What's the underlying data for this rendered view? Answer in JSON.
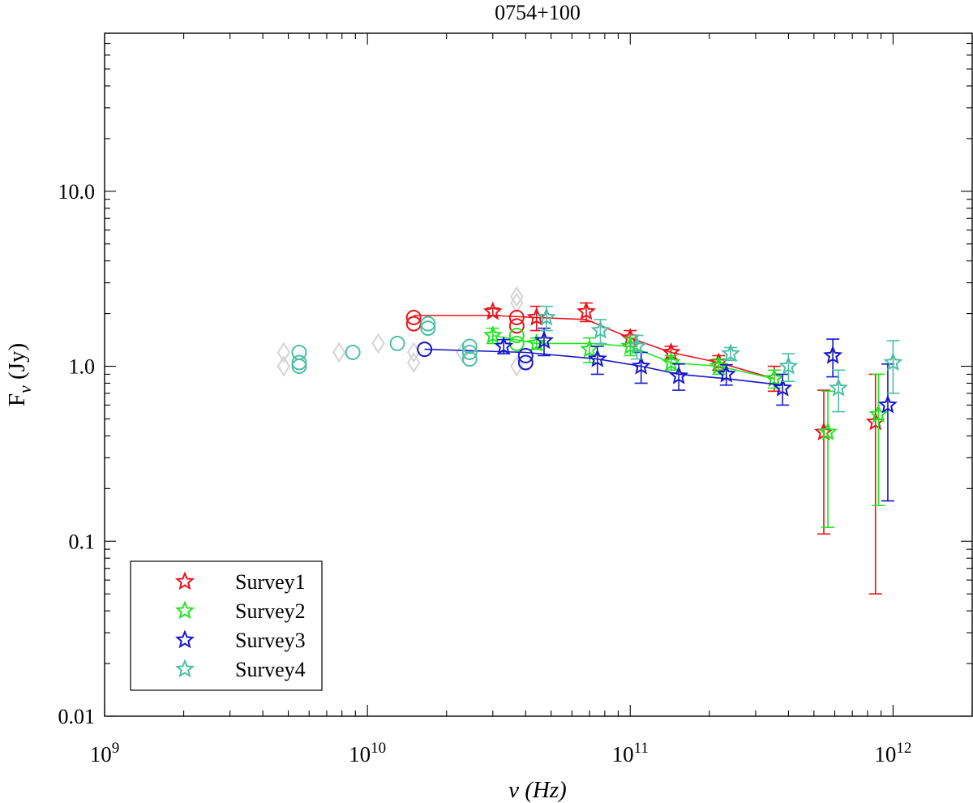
{
  "chart_data": {
    "type": "scatter",
    "title": "0754+100",
    "xlabel": "ν (Hz)",
    "ylabel_main": "F",
    "ylabel_sub": "ν",
    "ylabel_unit": " (Jy)",
    "x_scale": "log",
    "y_scale": "log",
    "xlim": [
      1000000000.0,
      2000000000000.0
    ],
    "ylim": [
      0.01,
      80
    ],
    "x_ticks": [
      {
        "value": 1000000000.0,
        "base": "10",
        "exp": "9"
      },
      {
        "value": 10000000000.0,
        "base": "10",
        "exp": "10"
      },
      {
        "value": 100000000000.0,
        "base": "10",
        "exp": "11"
      },
      {
        "value": 1000000000000.0,
        "base": "10",
        "exp": "12"
      }
    ],
    "y_ticks": [
      {
        "value": 0.01,
        "label": "0.01"
      },
      {
        "value": 0.1,
        "label": "0.1"
      },
      {
        "value": 1,
        "label": "1.0"
      },
      {
        "value": 10,
        "label": "10.0"
      }
    ],
    "legend_position": "bottom-left",
    "grid": false,
    "series": [
      {
        "name": "Survey1",
        "color": "#e8141c",
        "line": [
          [
            15000000000.0,
            1.95
          ],
          [
            30000000000.0,
            1.95
          ],
          [
            44000000000.0,
            1.9
          ],
          [
            68000000000.0,
            1.85
          ],
          [
            100000000000.0,
            1.45
          ],
          [
            143000000000.0,
            1.2
          ],
          [
            217000000000.0,
            1.05
          ],
          [
            353000000000.0,
            0.85
          ]
        ],
        "stars": [
          [
            30000000000.0,
            2.05,
            0.1,
            0.1
          ],
          [
            44000000000.0,
            1.9,
            0.3,
            0.3
          ],
          [
            68000000000.0,
            2.05,
            0.25,
            0.25
          ],
          [
            100000000000.0,
            1.45,
            0.15,
            0.15
          ],
          [
            143000000000.0,
            1.2,
            0.1,
            0.1
          ],
          [
            217000000000.0,
            1.05,
            0.1,
            0.1
          ],
          [
            353000000000.0,
            0.85,
            0.13,
            0.15
          ],
          [
            545000000000.0,
            0.42,
            0.31,
            0.31
          ],
          [
            857000000000.0,
            0.48,
            0.43,
            0.42
          ]
        ],
        "circles": [
          [
            15000000000.0,
            1.9
          ],
          [
            15000000000.0,
            1.75
          ],
          [
            37000000000.0,
            1.9
          ],
          [
            37000000000.0,
            1.7
          ]
        ]
      },
      {
        "name": "Survey2",
        "color": "#22e622",
        "line": [
          [
            30000000000.0,
            1.5
          ],
          [
            44000000000.0,
            1.35
          ],
          [
            70000000000.0,
            1.35
          ],
          [
            100000000000.0,
            1.3
          ],
          [
            143000000000.0,
            1.05
          ],
          [
            217000000000.0,
            1.0
          ],
          [
            353000000000.0,
            0.85
          ]
        ],
        "stars": [
          [
            30000000000.0,
            1.5,
            0.15,
            0.15
          ],
          [
            44000000000.0,
            1.35,
            0.1,
            0.1
          ],
          [
            70000000000.0,
            1.25,
            0.2,
            0.2
          ],
          [
            100000000000.0,
            1.3,
            0.15,
            0.15
          ],
          [
            143000000000.0,
            1.05,
            0.1,
            0.1
          ],
          [
            217000000000.0,
            1.0,
            0.1,
            0.1
          ],
          [
            353000000000.0,
            0.85,
            0.1,
            0.1
          ],
          [
            565000000000.0,
            0.42,
            0.3,
            0.3
          ],
          [
            880000000000.0,
            0.53,
            0.37,
            0.37
          ]
        ],
        "circles": [
          [
            37000000000.0,
            1.5
          ],
          [
            37000000000.0,
            1.35
          ]
        ]
      },
      {
        "name": "Survey3",
        "color": "#1818cc",
        "line": [
          [
            16500000000.0,
            1.25
          ],
          [
            40000000000.0,
            1.2
          ],
          [
            75000000000.0,
            1.1
          ],
          [
            110000000000.0,
            1.0
          ],
          [
            153000000000.0,
            0.9
          ],
          [
            232000000000.0,
            0.85
          ],
          [
            380000000000.0,
            0.78
          ]
        ],
        "stars": [
          [
            33000000000.0,
            1.3,
            0.12,
            0.12
          ],
          [
            47000000000.0,
            1.4,
            0.25,
            0.25
          ],
          [
            75000000000.0,
            1.1,
            0.2,
            0.2
          ],
          [
            110000000000.0,
            1.0,
            0.2,
            0.2
          ],
          [
            153000000000.0,
            0.88,
            0.15,
            0.15
          ],
          [
            232000000000.0,
            0.9,
            0.12,
            0.12
          ],
          [
            380000000000.0,
            0.75,
            0.15,
            0.15
          ],
          [
            590000000000.0,
            1.15,
            0.28,
            0.28
          ],
          [
            955000000000.0,
            0.6,
            0.43,
            0.43
          ]
        ],
        "circles": [
          [
            16500000000.0,
            1.25
          ],
          [
            40000000000.0,
            1.15
          ],
          [
            40000000000.0,
            1.05
          ]
        ]
      },
      {
        "name": "Survey4",
        "color": "#4dbfa6",
        "line": [],
        "stars": [
          [
            48000000000.0,
            1.9,
            0.3,
            0.3
          ],
          [
            77000000000.0,
            1.6,
            0.25,
            0.25
          ],
          [
            106000000000.0,
            1.3,
            0.2,
            0.2
          ],
          [
            241000000000.0,
            1.18,
            0.1,
            0.1
          ],
          [
            400000000000.0,
            1.0,
            0.18,
            0.18
          ],
          [
            620000000000.0,
            0.75,
            0.2,
            0.2
          ],
          [
            1000000000000.0,
            1.05,
            0.35,
            0.35
          ]
        ],
        "circles": [
          [
            5500000000.0,
            1.2
          ],
          [
            5500000000.0,
            1.05
          ],
          [
            5500000000.0,
            1.0
          ],
          [
            8800000000.0,
            1.2
          ],
          [
            13000000000.0,
            1.35
          ],
          [
            17000000000.0,
            1.75
          ],
          [
            17000000000.0,
            1.65
          ],
          [
            24500000000.0,
            1.3
          ],
          [
            24500000000.0,
            1.2
          ],
          [
            24500000000.0,
            1.1
          ]
        ]
      }
    ],
    "archival_grey_points": [
      [
        4800000000.0,
        1.0
      ],
      [
        4800000000.0,
        1.2
      ],
      [
        7800000000.0,
        1.2
      ],
      [
        11000000000.0,
        1.35
      ],
      [
        15000000000.0,
        1.2
      ],
      [
        15000000000.0,
        1.05
      ],
      [
        23000000000.0,
        1.2
      ],
      [
        37000000000.0,
        1.0
      ],
      [
        37000000000.0,
        2.3
      ],
      [
        37000000000.0,
        2.5
      ]
    ]
  }
}
